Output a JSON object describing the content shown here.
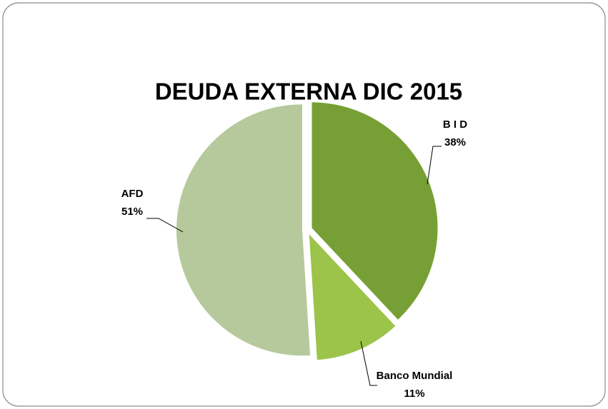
{
  "chart_data": {
    "type": "pie",
    "title": "DEUDA EXTERNA DIC 2015",
    "categories": [
      "B I D",
      "Banco Mundial",
      "AFD"
    ],
    "values": [
      38,
      11,
      51
    ],
    "value_labels": [
      "38%",
      "11%",
      "51%"
    ],
    "colors": [
      "#76a035",
      "#9cc44a",
      "#b6c99c"
    ]
  }
}
